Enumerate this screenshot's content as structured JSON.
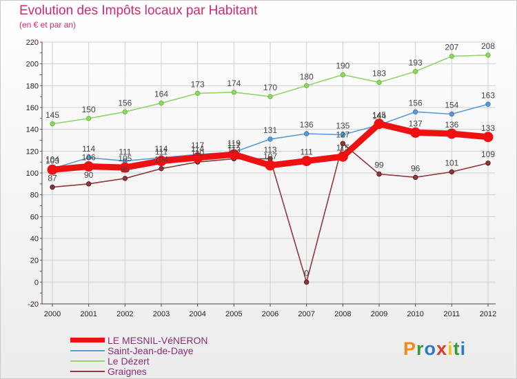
{
  "title": "Evolution des Impôts locaux par Habitant",
  "subtitle": "(en € et par an)",
  "brand": "Proxiti",
  "colors": {
    "title": "#cf2a6d",
    "legend_text": "#8a2d7a",
    "grid": "#cfcfcf",
    "axis": "#444444",
    "tick_label": "#222222"
  },
  "chart_data": {
    "type": "line",
    "title": "Evolution des Impôts locaux par Habitant",
    "subtitle": "(en € et par an)",
    "categories": [
      "2000",
      "2001",
      "2002",
      "2003",
      "2004",
      "2005",
      "2006",
      "2007",
      "2008",
      "2009",
      "2010",
      "2011",
      "2012"
    ],
    "ylim": [
      -20,
      220
    ],
    "yticks": [
      -20,
      0,
      20,
      40,
      60,
      80,
      100,
      120,
      140,
      160,
      180,
      200,
      220
    ],
    "grid": true,
    "legend_position": "bottom-left",
    "series": [
      {
        "name": "LE MESNIL-VéNERON",
        "color": "#ee1111",
        "style": "thick",
        "values": [
          103,
          106,
          105,
          111,
          114,
          117,
          107,
          111,
          115,
          145,
          137,
          136,
          133
        ],
        "labels": [
          "103",
          "106",
          "105",
          "111",
          "114",
          "117",
          "107",
          "111",
          "115",
          "145",
          "137",
          "136",
          "133"
        ]
      },
      {
        "name": "Saint-Jean-de-Daye",
        "color": "#5b9bd5",
        "marker": "#3a7fc4",
        "style": "thin",
        "values": [
          104,
          114,
          111,
          114,
          117,
          119,
          131,
          136,
          135,
          144,
          156,
          154,
          163
        ],
        "labels": [
          "104",
          "114",
          "111",
          "114",
          "117",
          "119",
          "131",
          "136",
          "135",
          "144",
          "156",
          "154",
          "163"
        ]
      },
      {
        "name": "Le Dézert",
        "color": "#92d36a",
        "marker": "#6cbf3a",
        "style": "thin",
        "values": [
          145,
          150,
          156,
          164,
          173,
          174,
          170,
          180,
          190,
          183,
          193,
          207,
          208
        ],
        "labels": [
          "145",
          "150",
          "156",
          "164",
          "173",
          "174",
          "170",
          "180",
          "190",
          "183",
          "193",
          "207",
          "208"
        ]
      },
      {
        "name": "Graignes",
        "color": "#8b3a3a",
        "marker": "#5a1a1a",
        "style": "thin",
        "values": [
          87,
          90,
          95,
          104,
          110,
          113,
          113,
          0,
          127,
          99,
          96,
          101,
          109
        ],
        "labels": [
          "87",
          "90",
          "95",
          "104",
          "110",
          "113",
          "113",
          "0",
          "127",
          "99",
          "96",
          "101",
          "109"
        ]
      }
    ]
  }
}
